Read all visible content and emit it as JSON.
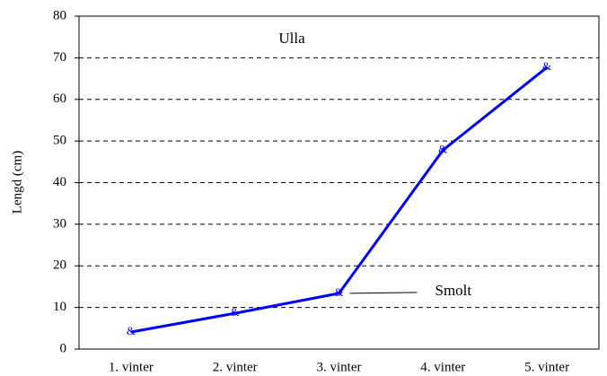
{
  "chart_data": {
    "type": "line",
    "title": "Ulla",
    "y_label": "Lengd (cm)",
    "categories": [
      "1. vinter",
      "2. vinter",
      "3. vinter",
      "4. vinter",
      "5. vinter"
    ],
    "series": [
      {
        "name": "Ulla",
        "color": "#0000ff",
        "values": [
          4.1,
          8.6,
          13.4,
          47.8,
          67.7
        ]
      }
    ],
    "marker_symbol": "&",
    "ylim": [
      0,
      80
    ],
    "yticks": [
      0,
      10,
      20,
      30,
      40,
      50,
      60,
      70,
      80
    ],
    "grid": true,
    "annotations": [
      {
        "text": "Smolt",
        "category_index": 2
      }
    ]
  }
}
